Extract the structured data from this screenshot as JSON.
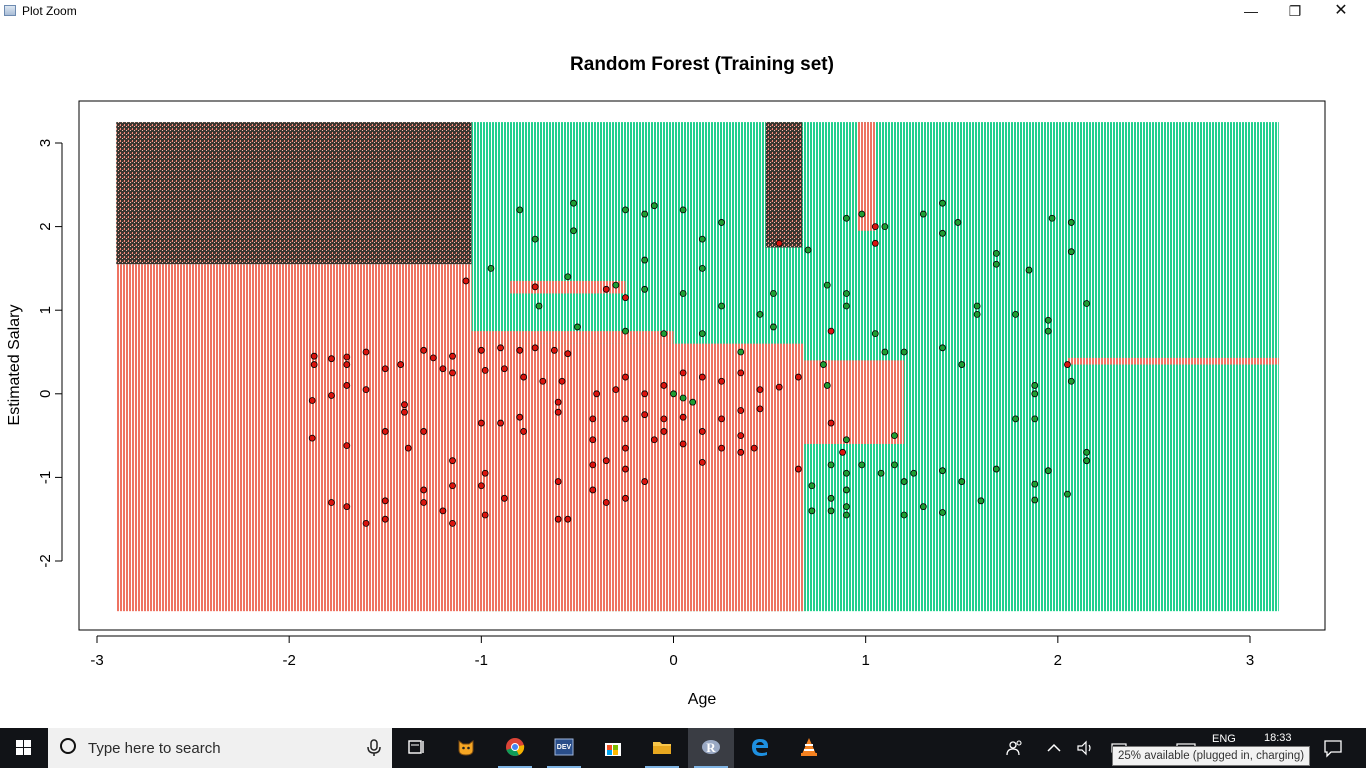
{
  "window": {
    "title": "Plot Zoom",
    "minimize_icon": "minimize-icon",
    "maximize_icon": "restore-icon",
    "close_icon": "close-icon",
    "minimize_glyph": "—",
    "restore_glyph": "❐",
    "close_glyph": "✕"
  },
  "chart_data": {
    "type": "scatter",
    "title": "Random Forest (Training set)",
    "xlabel": "Age",
    "ylabel": "Estimated Salary",
    "xlim": [
      -3.1,
      3.4
    ],
    "ylim": [
      -2.85,
      3.5
    ],
    "x_ticks": [
      -3,
      -2,
      -1,
      0,
      1,
      2,
      3
    ],
    "y_ticks": [
      -2,
      -1,
      0,
      1,
      2,
      3
    ],
    "grid": false,
    "legend": "none",
    "colors": {
      "class0_region": "#f08c7c",
      "class1_region": "#2fd59a",
      "class0_point": "#d9140f",
      "class1_point": "#1f9d33",
      "point_outline": "#000000"
    },
    "regions": [
      {
        "class": 0,
        "x": [
          -2.9,
          -1.05
        ],
        "y": [
          -2.6,
          1.55
        ]
      },
      {
        "class": 0,
        "x": [
          -2.9,
          -1.05
        ],
        "y": [
          1.55,
          3.25
        ],
        "dense": true
      },
      {
        "class": 1,
        "x": [
          -1.05,
          3.15
        ],
        "y": [
          -2.6,
          3.25
        ]
      },
      {
        "class": 0,
        "x": [
          -1.05,
          0.68
        ],
        "y": [
          -2.6,
          0.6
        ]
      },
      {
        "class": 0,
        "x": [
          -1.05,
          0.0
        ],
        "y": [
          0.6,
          0.75
        ]
      },
      {
        "class": 0,
        "x": [
          0.68,
          1.2
        ],
        "y": [
          -0.6,
          0.4
        ]
      },
      {
        "class": 0,
        "x": [
          0.48,
          0.67
        ],
        "y": [
          1.75,
          3.25
        ],
        "dense": true
      },
      {
        "class": 0,
        "x": [
          0.96,
          1.05
        ],
        "y": [
          1.95,
          3.25
        ]
      },
      {
        "class": 0,
        "x": [
          -0.85,
          -0.25
        ],
        "y": [
          1.2,
          1.35
        ]
      },
      {
        "class": 0,
        "x": [
          2.05,
          3.15
        ],
        "y": [
          0.35,
          0.43
        ]
      }
    ],
    "series": [
      {
        "class": 0,
        "points": [
          [
            -1.87,
            0.45
          ],
          [
            -1.87,
            0.35
          ],
          [
            -1.78,
            0.42
          ],
          [
            -1.7,
            0.44
          ],
          [
            -1.7,
            0.35
          ],
          [
            -1.6,
            0.5
          ],
          [
            -1.5,
            0.3
          ],
          [
            -1.42,
            0.35
          ],
          [
            -1.3,
            0.52
          ],
          [
            -1.25,
            0.43
          ],
          [
            -1.15,
            0.45
          ],
          [
            -1.08,
            1.35
          ],
          [
            -1.0,
            0.52
          ],
          [
            -0.9,
            0.55
          ],
          [
            -0.8,
            0.52
          ],
          [
            -0.72,
            0.55
          ],
          [
            -0.62,
            0.52
          ],
          [
            -0.55,
            0.48
          ],
          [
            -1.15,
            0.25
          ],
          [
            -1.2,
            0.3
          ],
          [
            -0.98,
            0.28
          ],
          [
            -0.88,
            0.3
          ],
          [
            -0.78,
            0.2
          ],
          [
            -0.68,
            0.15
          ],
          [
            -0.58,
            0.15
          ],
          [
            -1.88,
            -0.08
          ],
          [
            -1.78,
            -0.02
          ],
          [
            -1.7,
            0.1
          ],
          [
            -1.6,
            0.05
          ],
          [
            -1.4,
            -0.13
          ],
          [
            -1.4,
            -0.22
          ],
          [
            -1.3,
            -0.45
          ],
          [
            -1.5,
            -0.45
          ],
          [
            -1.38,
            -0.65
          ],
          [
            -1.88,
            -0.53
          ],
          [
            -1.7,
            -0.62
          ],
          [
            -1.0,
            -0.35
          ],
          [
            -0.9,
            -0.35
          ],
          [
            -0.8,
            -0.28
          ],
          [
            -0.6,
            -0.1
          ],
          [
            -0.6,
            -0.22
          ],
          [
            -0.42,
            -0.3
          ],
          [
            -0.25,
            -0.3
          ],
          [
            -0.15,
            -0.25
          ],
          [
            -0.05,
            -0.3
          ],
          [
            -0.05,
            -0.45
          ],
          [
            0.05,
            -0.28
          ],
          [
            0.15,
            -0.45
          ],
          [
            0.25,
            -0.3
          ],
          [
            0.35,
            -0.2
          ],
          [
            0.45,
            -0.18
          ],
          [
            0.35,
            -0.5
          ],
          [
            0.42,
            -0.65
          ],
          [
            -1.15,
            -0.8
          ],
          [
            -0.98,
            -0.95
          ],
          [
            -0.78,
            -0.45
          ],
          [
            -0.42,
            -0.55
          ],
          [
            -0.42,
            -0.85
          ],
          [
            -0.35,
            -0.8
          ],
          [
            -0.25,
            -0.65
          ],
          [
            -0.25,
            -0.9
          ],
          [
            -0.1,
            -0.55
          ],
          [
            0.05,
            -0.6
          ],
          [
            0.15,
            -0.82
          ],
          [
            0.25,
            -0.65
          ],
          [
            0.35,
            -0.7
          ],
          [
            -1.78,
            -1.3
          ],
          [
            -1.7,
            -1.35
          ],
          [
            -1.6,
            -1.55
          ],
          [
            -1.5,
            -1.28
          ],
          [
            -1.3,
            -1.15
          ],
          [
            -1.3,
            -1.3
          ],
          [
            -1.2,
            -1.4
          ],
          [
            -1.15,
            -1.1
          ],
          [
            -1.0,
            -1.1
          ],
          [
            -0.98,
            -1.45
          ],
          [
            -0.88,
            -1.25
          ],
          [
            -0.6,
            -1.05
          ],
          [
            -0.6,
            -1.5
          ],
          [
            -0.55,
            -1.5
          ],
          [
            -0.42,
            -1.15
          ],
          [
            -0.35,
            -1.3
          ],
          [
            -0.25,
            -1.25
          ],
          [
            -0.15,
            -1.05
          ],
          [
            -1.5,
            -1.5
          ],
          [
            -1.15,
            -1.55
          ],
          [
            0.65,
            -0.9
          ],
          [
            0.82,
            -0.35
          ],
          [
            0.82,
            0.75
          ],
          [
            0.88,
            -0.7
          ],
          [
            1.05,
            2.0
          ],
          [
            1.05,
            1.8
          ],
          [
            0.55,
            1.8
          ],
          [
            -0.35,
            1.25
          ],
          [
            -0.25,
            1.15
          ],
          [
            -0.72,
            1.28
          ],
          [
            -0.4,
            0.0
          ],
          [
            -0.3,
            0.05
          ],
          [
            -0.25,
            0.2
          ],
          [
            -0.15,
            0.0
          ],
          [
            -0.05,
            0.1
          ],
          [
            0.05,
            0.25
          ],
          [
            0.15,
            0.2
          ],
          [
            0.25,
            0.15
          ],
          [
            0.35,
            0.25
          ],
          [
            0.45,
            0.05
          ],
          [
            0.55,
            0.08
          ],
          [
            0.65,
            0.2
          ],
          [
            2.05,
            0.35
          ]
        ]
      },
      {
        "class": 1,
        "points": [
          [
            -0.8,
            2.2
          ],
          [
            -0.72,
            1.85
          ],
          [
            -0.52,
            2.28
          ],
          [
            -0.52,
            1.95
          ],
          [
            -0.55,
            1.4
          ],
          [
            -0.3,
            1.3
          ],
          [
            -0.25,
            2.2
          ],
          [
            -0.15,
            2.15
          ],
          [
            -0.15,
            1.6
          ],
          [
            -0.1,
            2.25
          ],
          [
            0.05,
            2.2
          ],
          [
            0.15,
            1.5
          ],
          [
            0.15,
            1.85
          ],
          [
            0.25,
            2.05
          ],
          [
            -0.15,
            1.25
          ],
          [
            0.05,
            1.2
          ],
          [
            -0.95,
            1.5
          ],
          [
            -0.7,
            1.05
          ],
          [
            -0.5,
            0.8
          ],
          [
            -0.25,
            0.75
          ],
          [
            -0.05,
            0.72
          ],
          [
            0.15,
            0.72
          ],
          [
            0.35,
            0.5
          ],
          [
            0.25,
            1.05
          ],
          [
            0.45,
            0.95
          ],
          [
            0.52,
            0.8
          ],
          [
            0.7,
            1.72
          ],
          [
            0.52,
            1.2
          ],
          [
            0.8,
            1.3
          ],
          [
            0.9,
            1.2
          ],
          [
            0.9,
            1.05
          ],
          [
            0.9,
            2.1
          ],
          [
            0.98,
            2.15
          ],
          [
            1.05,
            0.72
          ],
          [
            1.1,
            2.0
          ],
          [
            1.1,
            0.5
          ],
          [
            1.2,
            0.5
          ],
          [
            1.3,
            2.15
          ],
          [
            1.4,
            2.28
          ],
          [
            1.4,
            1.92
          ],
          [
            1.4,
            0.55
          ],
          [
            1.48,
            2.05
          ],
          [
            1.5,
            0.35
          ],
          [
            1.58,
            1.05
          ],
          [
            1.58,
            0.95
          ],
          [
            1.68,
            1.68
          ],
          [
            1.68,
            1.55
          ],
          [
            1.78,
            0.95
          ],
          [
            1.85,
            1.48
          ],
          [
            1.95,
            0.88
          ],
          [
            1.95,
            0.75
          ],
          [
            1.97,
            2.1
          ],
          [
            2.07,
            2.05
          ],
          [
            2.07,
            1.7
          ],
          [
            2.15,
            1.08
          ],
          [
            0.1,
            -0.1
          ],
          [
            0.05,
            -0.05
          ],
          [
            0.0,
            0.0
          ],
          [
            0.82,
            -0.85
          ],
          [
            0.9,
            -0.55
          ],
          [
            0.9,
            -0.95
          ],
          [
            0.9,
            -1.15
          ],
          [
            0.98,
            -0.85
          ],
          [
            1.08,
            -0.95
          ],
          [
            1.15,
            -0.5
          ],
          [
            1.15,
            -0.85
          ],
          [
            1.2,
            -1.05
          ],
          [
            1.25,
            -0.95
          ],
          [
            0.72,
            -1.1
          ],
          [
            0.82,
            -1.25
          ],
          [
            0.9,
            -1.35
          ],
          [
            0.82,
            -1.4
          ],
          [
            0.72,
            -1.4
          ],
          [
            0.9,
            -1.45
          ],
          [
            1.2,
            -1.45
          ],
          [
            1.3,
            -1.35
          ],
          [
            1.4,
            -0.92
          ],
          [
            1.4,
            -1.42
          ],
          [
            1.5,
            -1.05
          ],
          [
            1.6,
            -1.28
          ],
          [
            1.68,
            -0.9
          ],
          [
            1.78,
            -0.3
          ],
          [
            1.88,
            -0.3
          ],
          [
            1.88,
            0.0
          ],
          [
            1.88,
            0.1
          ],
          [
            1.95,
            -0.92
          ],
          [
            1.88,
            -1.08
          ],
          [
            1.88,
            -1.27
          ],
          [
            2.05,
            -1.2
          ],
          [
            2.07,
            0.15
          ],
          [
            2.15,
            -0.7
          ],
          [
            2.15,
            -0.8
          ],
          [
            2.15,
            -0.8
          ],
          [
            0.78,
            0.35
          ],
          [
            0.8,
            0.1
          ]
        ]
      }
    ]
  },
  "taskbar": {
    "search_placeholder": "Type here to search",
    "language": "ENG",
    "time": "18:33",
    "battery_tooltip": "25% available (plugged in, charging)",
    "apps": [
      {
        "name": "task-view-icon"
      },
      {
        "name": "scratch-cat-icon"
      },
      {
        "name": "chrome-icon"
      },
      {
        "name": "devcpp-icon"
      },
      {
        "name": "store-icon"
      },
      {
        "name": "file-explorer-icon"
      },
      {
        "name": "r-gui-icon"
      },
      {
        "name": "edge-icon"
      },
      {
        "name": "vlc-icon"
      }
    ]
  }
}
